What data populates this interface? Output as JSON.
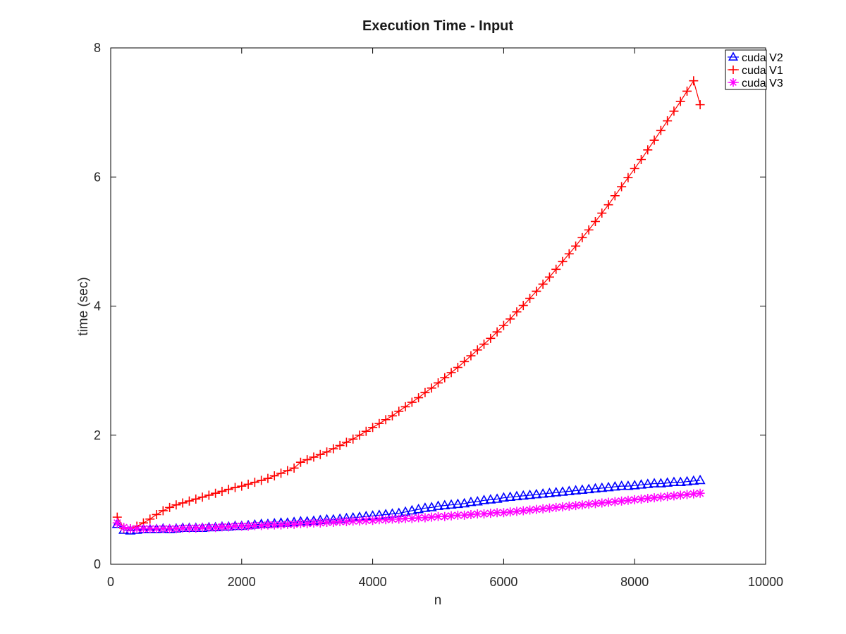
{
  "chart_data": {
    "type": "line",
    "title": "Execution Time - Input",
    "xlabel": "n",
    "ylabel": "time (sec)",
    "xlim": [
      0,
      10000
    ],
    "ylim": [
      0,
      8
    ],
    "xticks": [
      0,
      2000,
      4000,
      6000,
      8000,
      10000
    ],
    "yticks": [
      0,
      2,
      4,
      6,
      8
    ],
    "grid": false,
    "legend_position": "top-right",
    "x": [
      100,
      200,
      300,
      400,
      500,
      600,
      700,
      800,
      900,
      1000,
      1100,
      1200,
      1300,
      1400,
      1500,
      1600,
      1700,
      1800,
      1900,
      2000,
      2100,
      2200,
      2300,
      2400,
      2500,
      2600,
      2700,
      2800,
      2900,
      3000,
      3100,
      3200,
      3300,
      3400,
      3500,
      3600,
      3700,
      3800,
      3900,
      4000,
      4100,
      4200,
      4300,
      4400,
      4500,
      4600,
      4700,
      4800,
      4900,
      5000,
      5100,
      5200,
      5300,
      5400,
      5500,
      5600,
      5700,
      5800,
      5900,
      6000,
      6100,
      6200,
      6300,
      6400,
      6500,
      6600,
      6700,
      6800,
      6900,
      7000,
      7100,
      7200,
      7300,
      7400,
      7500,
      7600,
      7700,
      7800,
      7900,
      8000,
      8100,
      8200,
      8300,
      8400,
      8500,
      8600,
      8700,
      8800,
      8900,
      9000
    ],
    "series": [
      {
        "name": "cuda V2",
        "color": "#0000ff",
        "marker": "triangle",
        "values": [
          0.62,
          0.53,
          0.52,
          0.53,
          0.54,
          0.54,
          0.54,
          0.55,
          0.54,
          0.55,
          0.56,
          0.56,
          0.56,
          0.56,
          0.57,
          0.57,
          0.58,
          0.58,
          0.59,
          0.59,
          0.6,
          0.61,
          0.62,
          0.62,
          0.63,
          0.64,
          0.64,
          0.65,
          0.66,
          0.66,
          0.67,
          0.68,
          0.69,
          0.69,
          0.7,
          0.71,
          0.72,
          0.73,
          0.74,
          0.75,
          0.76,
          0.77,
          0.78,
          0.79,
          0.81,
          0.83,
          0.85,
          0.87,
          0.88,
          0.9,
          0.91,
          0.92,
          0.93,
          0.94,
          0.96,
          0.97,
          0.99,
          1.0,
          1.01,
          1.03,
          1.04,
          1.05,
          1.06,
          1.07,
          1.08,
          1.09,
          1.1,
          1.11,
          1.12,
          1.13,
          1.14,
          1.15,
          1.16,
          1.17,
          1.18,
          1.19,
          1.2,
          1.21,
          1.21,
          1.22,
          1.23,
          1.24,
          1.25,
          1.25,
          1.26,
          1.27,
          1.27,
          1.28,
          1.29,
          1.3
        ]
      },
      {
        "name": "cuda V1",
        "color": "#ff0000",
        "marker": "plus",
        "values": [
          0.73,
          0.56,
          0.55,
          0.59,
          0.64,
          0.7,
          0.77,
          0.83,
          0.88,
          0.92,
          0.95,
          0.98,
          1.01,
          1.04,
          1.07,
          1.1,
          1.13,
          1.16,
          1.19,
          1.21,
          1.24,
          1.27,
          1.3,
          1.33,
          1.37,
          1.41,
          1.45,
          1.49,
          1.58,
          1.62,
          1.66,
          1.7,
          1.74,
          1.79,
          1.84,
          1.89,
          1.94,
          2.0,
          2.06,
          2.12,
          2.18,
          2.24,
          2.3,
          2.37,
          2.44,
          2.51,
          2.58,
          2.66,
          2.73,
          2.81,
          2.89,
          2.97,
          3.05,
          3.14,
          3.23,
          3.32,
          3.41,
          3.5,
          3.6,
          3.7,
          3.8,
          3.91,
          4.01,
          4.12,
          4.23,
          4.34,
          4.45,
          4.57,
          4.69,
          4.81,
          4.93,
          5.06,
          5.18,
          5.31,
          5.44,
          5.57,
          5.71,
          5.85,
          5.99,
          6.13,
          6.27,
          6.42,
          6.57,
          6.72,
          6.87,
          7.02,
          7.17,
          7.33,
          7.49,
          7.12
        ]
      },
      {
        "name": "cuda V3",
        "color": "#ff00ff",
        "marker": "star",
        "values": [
          0.64,
          0.57,
          0.55,
          0.55,
          0.55,
          0.55,
          0.55,
          0.55,
          0.55,
          0.55,
          0.56,
          0.56,
          0.56,
          0.57,
          0.57,
          0.57,
          0.58,
          0.58,
          0.59,
          0.59,
          0.59,
          0.6,
          0.6,
          0.61,
          0.61,
          0.61,
          0.62,
          0.62,
          0.63,
          0.63,
          0.64,
          0.64,
          0.65,
          0.65,
          0.66,
          0.66,
          0.67,
          0.67,
          0.68,
          0.68,
          0.69,
          0.69,
          0.7,
          0.7,
          0.71,
          0.71,
          0.72,
          0.72,
          0.73,
          0.74,
          0.74,
          0.75,
          0.76,
          0.76,
          0.77,
          0.78,
          0.78,
          0.79,
          0.8,
          0.8,
          0.81,
          0.82,
          0.83,
          0.84,
          0.85,
          0.86,
          0.87,
          0.88,
          0.89,
          0.9,
          0.91,
          0.92,
          0.93,
          0.94,
          0.95,
          0.96,
          0.97,
          0.98,
          0.99,
          1.0,
          1.01,
          1.02,
          1.03,
          1.04,
          1.05,
          1.06,
          1.07,
          1.08,
          1.09,
          1.1
        ]
      }
    ]
  }
}
